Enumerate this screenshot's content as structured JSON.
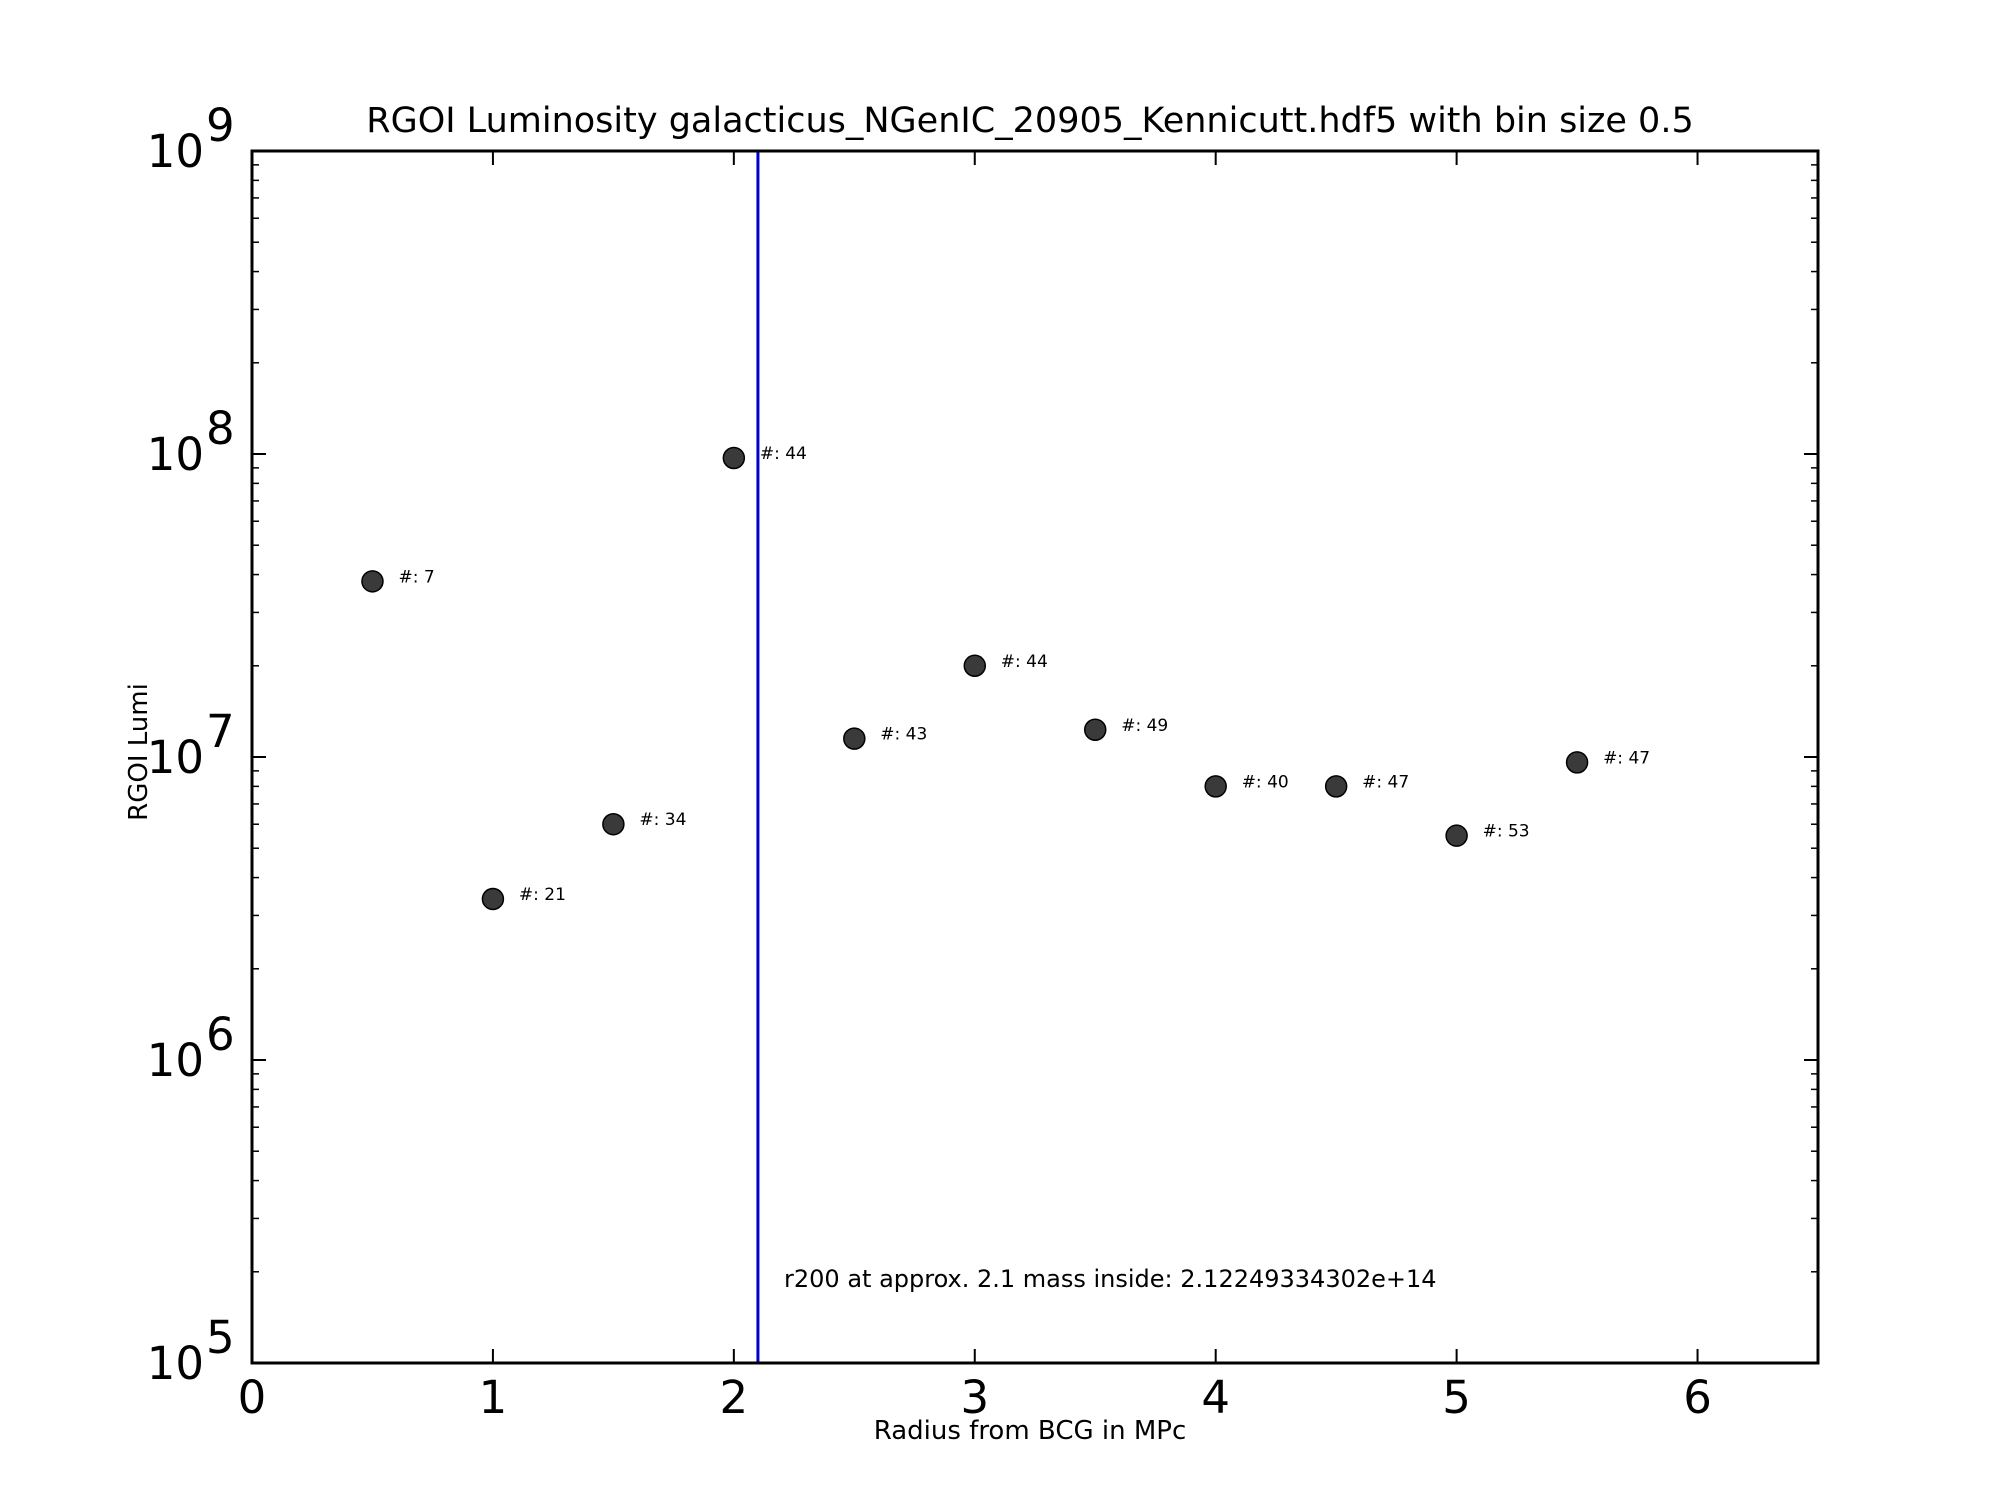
{
  "chart_data": {
    "type": "scatter",
    "title": "RGOI Luminosity galacticus_NGenIC_20905_Kennicutt.hdf5 with bin size 0.5",
    "xlabel": "Radius from BCG in MPc",
    "ylabel": "RGOI Lumi",
    "xlim": [
      0,
      6.5
    ],
    "ylim": [
      100000,
      1000000000
    ],
    "yscale": "log",
    "grid": false,
    "x_ticks": [
      0,
      1,
      2,
      3,
      4,
      5,
      6
    ],
    "x_tick_labels": [
      "0",
      "1",
      "2",
      "3",
      "4",
      "5",
      "6"
    ],
    "y_ticks": [
      {
        "value": 100000,
        "base": "10",
        "exp": "5"
      },
      {
        "value": 1000000,
        "base": "10",
        "exp": "6"
      },
      {
        "value": 10000000,
        "base": "10",
        "exp": "7"
      },
      {
        "value": 100000000,
        "base": "10",
        "exp": "8"
      },
      {
        "value": 1000000000,
        "base": "10",
        "exp": "9"
      }
    ],
    "series": [
      {
        "color": "#3a3a3a",
        "points": [
          {
            "x": 0.5,
            "y": 38000000,
            "label": "#: 7"
          },
          {
            "x": 1.0,
            "y": 3400000,
            "label": "#: 21"
          },
          {
            "x": 1.5,
            "y": 6000000,
            "label": "#: 34"
          },
          {
            "x": 2.0,
            "y": 97000000,
            "label": "#: 44"
          },
          {
            "x": 2.5,
            "y": 11500000,
            "label": "#: 43"
          },
          {
            "x": 3.0,
            "y": 20000000,
            "label": "#: 44"
          },
          {
            "x": 3.5,
            "y": 12300000,
            "label": "#: 49"
          },
          {
            "x": 4.0,
            "y": 8000000,
            "label": "#: 40"
          },
          {
            "x": 4.5,
            "y": 8000000,
            "label": "#: 47"
          },
          {
            "x": 5.0,
            "y": 5500000,
            "label": "#: 53"
          },
          {
            "x": 5.5,
            "y": 9600000,
            "label": "#: 47"
          }
        ]
      }
    ],
    "vline": {
      "x": 2.1,
      "color": "#0000cc"
    },
    "annotation": {
      "text": "r200 at approx. 2.1 mass inside: 2.12249334302e+14",
      "x": 2.2,
      "y": 200000
    }
  }
}
